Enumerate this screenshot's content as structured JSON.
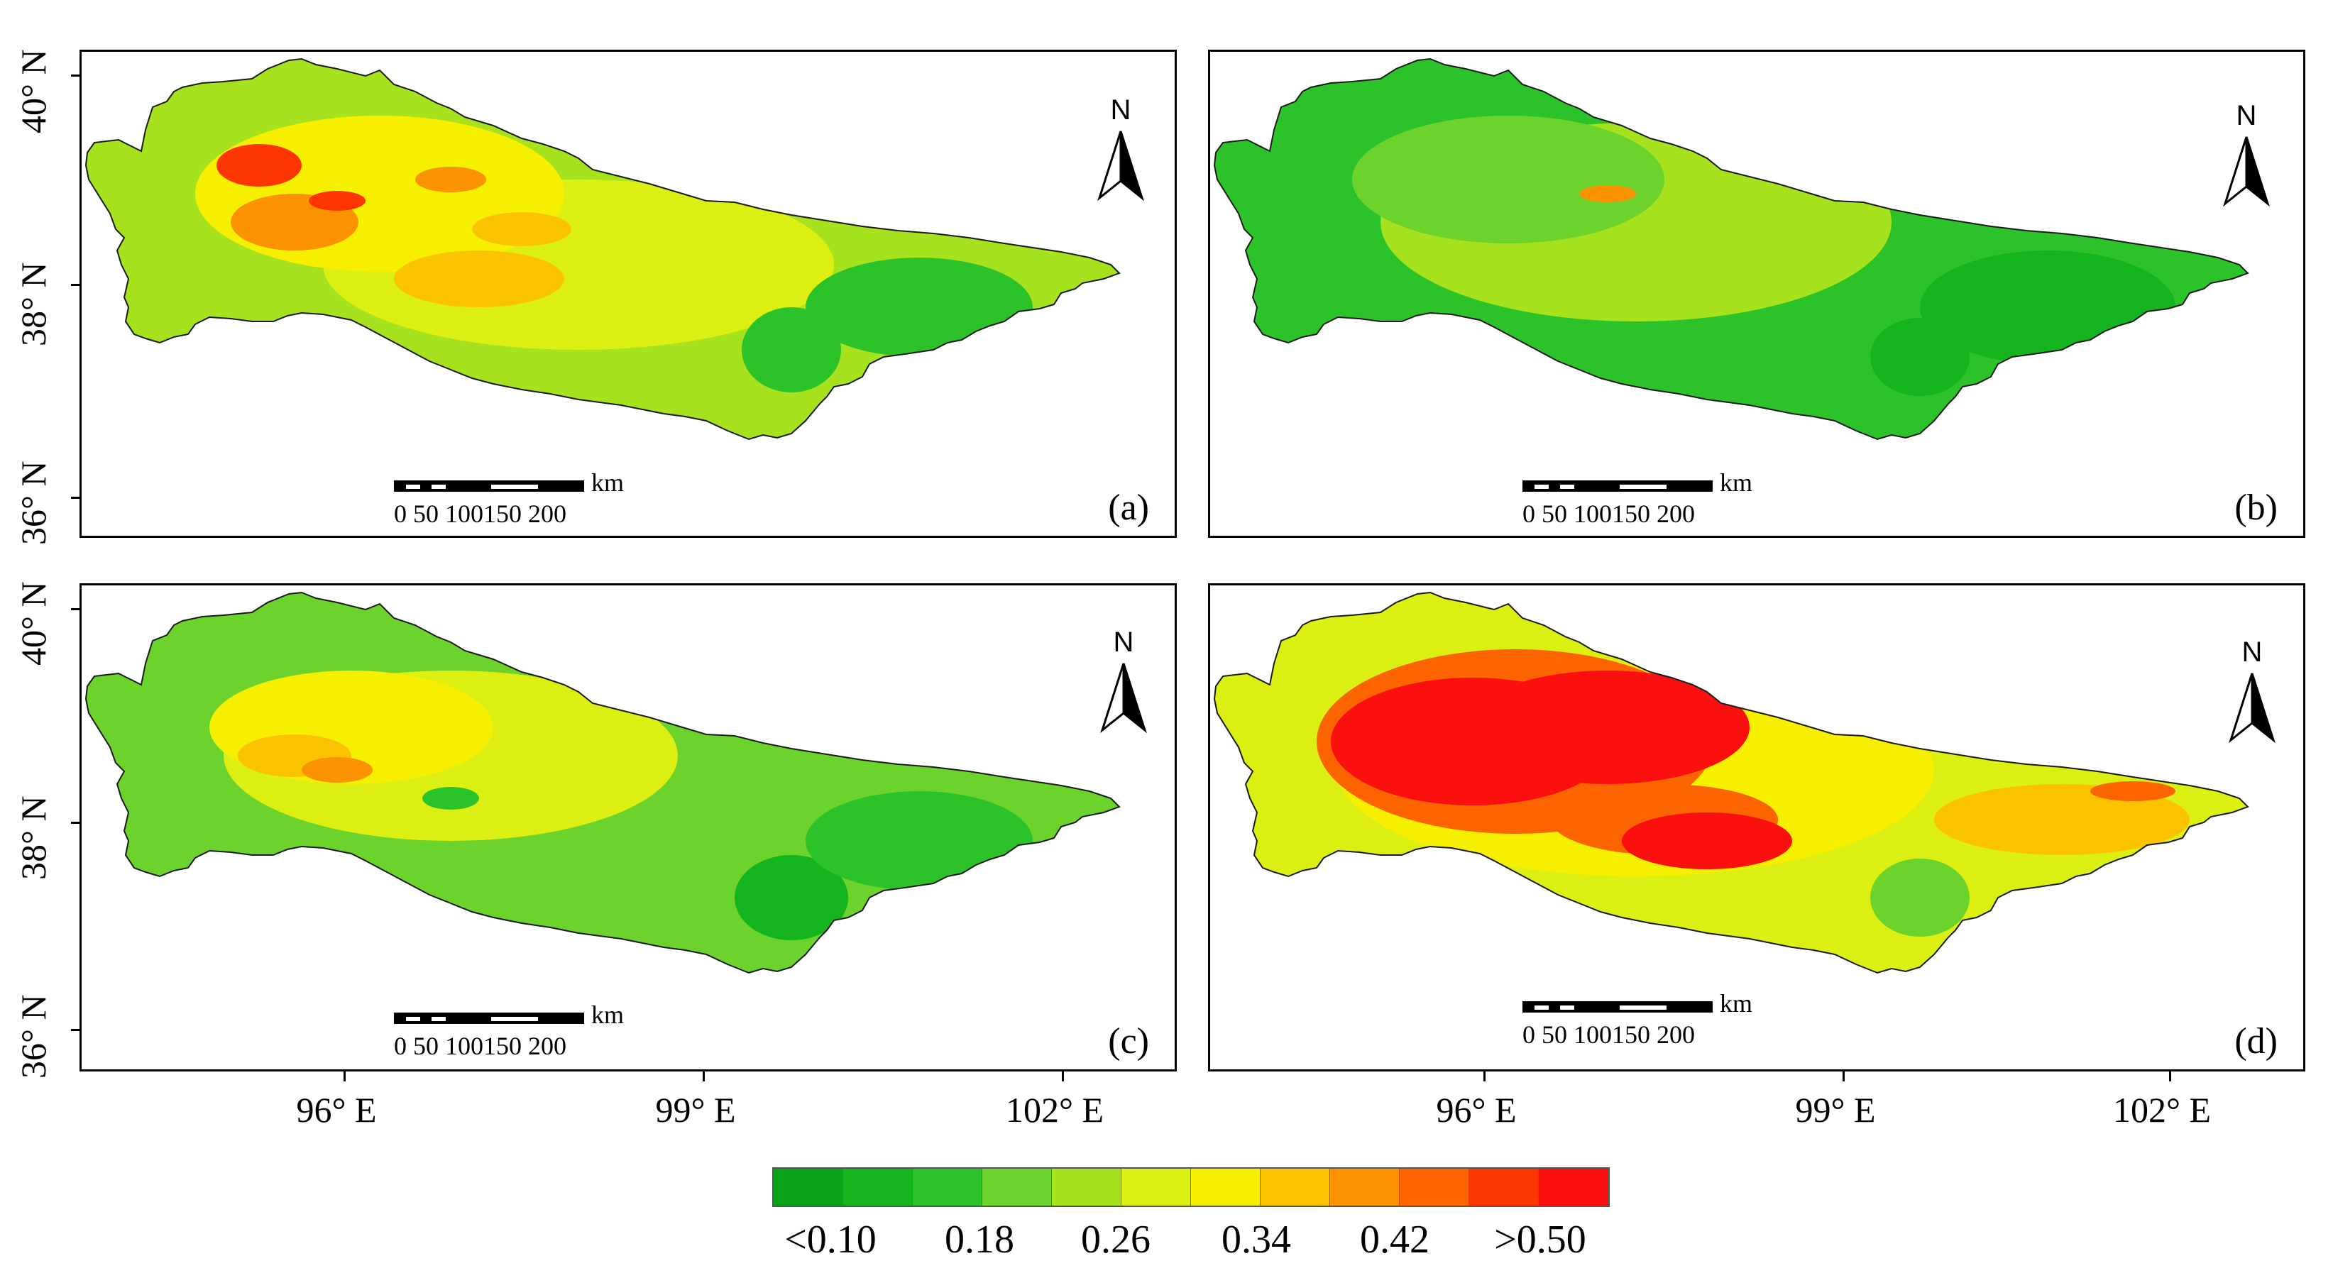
{
  "panels": [
    {
      "id": "a",
      "label": "(a)"
    },
    {
      "id": "b",
      "label": "(b)"
    },
    {
      "id": "c",
      "label": "(c)"
    },
    {
      "id": "d",
      "label": "(d)"
    }
  ],
  "north_arrow": {
    "letter": "N"
  },
  "scale_bar": {
    "unit": "km",
    "ticks": "0    50  100150 200"
  },
  "y_axis_labels": [
    "40° N",
    "38° N",
    "36° N"
  ],
  "x_axis_labels": [
    "96° E",
    "99° E",
    "102° E"
  ],
  "legend": {
    "colors": [
      "#0aa31a",
      "#14b41e",
      "#2cc32a",
      "#6cd22c",
      "#a6e21e",
      "#dcef12",
      "#f7ef00",
      "#fbc200",
      "#fb9300",
      "#fb6400",
      "#fb3600",
      "#fb1010"
    ],
    "labels": [
      "<0.10",
      "0.18",
      "0.26",
      "0.34",
      "0.42",
      ">0.50"
    ]
  },
  "map_colors": {
    "a": {
      "base": "#a6e21e",
      "patches": [
        "#dcef12",
        "#f7ef00",
        "#fbc200",
        "#fb9300",
        "#fb3600",
        "#2cc32a"
      ]
    },
    "b": {
      "base": "#2cc32a",
      "patches": [
        "#6cd22c",
        "#a6e21e",
        "#14b41e",
        "#fb9300"
      ]
    },
    "c": {
      "base": "#6cd22c",
      "patches": [
        "#dcef12",
        "#f7ef00",
        "#fbc200",
        "#fb9300",
        "#2cc32a",
        "#14b41e"
      ]
    },
    "d": {
      "base": "#dcef12",
      "patches": [
        "#f7ef00",
        "#fbc200",
        "#fb6400",
        "#fb1010",
        "#6cd22c",
        "#2cc32a"
      ]
    }
  }
}
